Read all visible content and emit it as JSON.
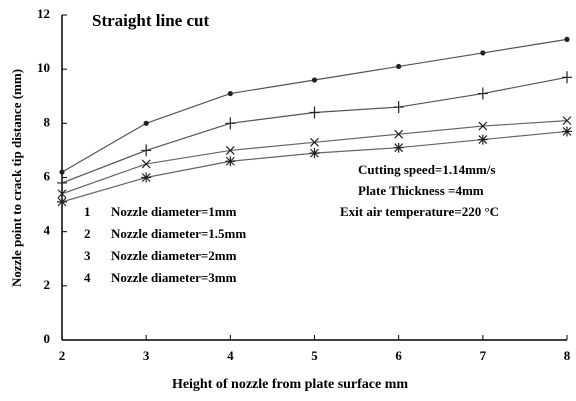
{
  "chart_data": {
    "type": "line",
    "title": "Straight line cut",
    "xlabel": "Height of nozzle from plate surface  mm",
    "ylabel": "Nozzle point to crack tip distance (mm)",
    "x": [
      2,
      3,
      4,
      5,
      6,
      7,
      8
    ],
    "series": [
      {
        "label": "1",
        "name": "Nozzle diameter=1mm",
        "color": "#555555",
        "marker": "dot",
        "values": [
          6.2,
          8.0,
          9.1,
          9.6,
          10.1,
          10.6,
          11.1
        ]
      },
      {
        "label": "2",
        "name": "Nozzle diameter=1.5mm",
        "color": "#555555",
        "marker": "plus",
        "values": [
          5.8,
          7.0,
          8.0,
          8.4,
          8.6,
          9.1,
          9.7
        ]
      },
      {
        "label": "3",
        "name": "Nozzle diameter=2mm",
        "color": "#666666",
        "marker": "cross",
        "values": [
          5.4,
          6.5,
          7.0,
          7.3,
          7.6,
          7.9,
          8.1
        ]
      },
      {
        "label": "4",
        "name": "Nozzle diameter=3mm",
        "color": "#666666",
        "marker": "asterisk",
        "values": [
          5.1,
          6.0,
          6.6,
          6.9,
          7.1,
          7.4,
          7.7
        ]
      }
    ],
    "annotations": [
      "Cutting speed=1.14mm/s",
      "Plate Thickness =4mm",
      "Exit air temperature=220 °C"
    ],
    "xlim": [
      2,
      8
    ],
    "xticks": [
      2,
      3,
      4,
      5,
      6,
      7,
      8
    ],
    "ylim": [
      0,
      12
    ],
    "yticks": [
      0,
      2,
      4,
      6,
      8,
      10,
      12
    ],
    "grid": false
  }
}
